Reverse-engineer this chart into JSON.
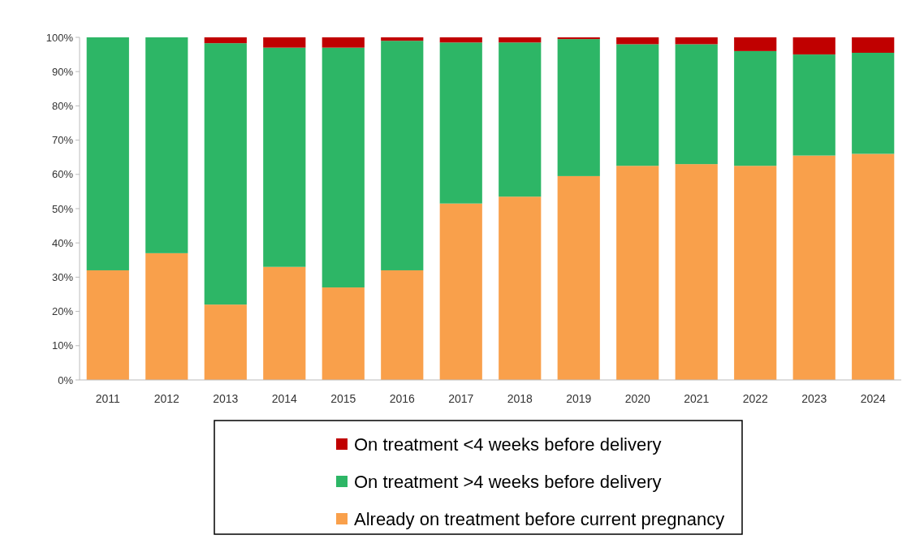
{
  "chart_data": {
    "type": "bar",
    "stacked": true,
    "legend": "bottom",
    "categories": [
      "2011",
      "2012",
      "2013",
      "2014",
      "2015",
      "2016",
      "2017",
      "2018",
      "2019",
      "2020",
      "2021",
      "2022",
      "2023",
      "2024"
    ],
    "ylim": [
      0,
      100
    ],
    "yticks": [
      {
        "value": 0,
        "label": "0%"
      },
      {
        "value": 10,
        "label": "10%"
      },
      {
        "value": 20,
        "label": "20%"
      },
      {
        "value": 30,
        "label": "30%"
      },
      {
        "value": 40,
        "label": "40%"
      },
      {
        "value": 50,
        "label": "50%"
      },
      {
        "value": 60,
        "label": "60%"
      },
      {
        "value": 70,
        "label": "70%"
      },
      {
        "value": 80,
        "label": "80%"
      },
      {
        "value": 90,
        "label": "90%"
      },
      {
        "value": 100,
        "label": "100%"
      }
    ],
    "series": [
      {
        "name": "Already on treatment before current pregnancy",
        "color": "#f9a04b",
        "values": [
          32,
          37,
          22,
          33,
          27,
          32,
          51.5,
          53.5,
          59.5,
          62.5,
          63,
          62.5,
          65.5,
          66
        ]
      },
      {
        "name": "On treatment >4 weeks before delivery",
        "color": "#2db666",
        "values": [
          68,
          63,
          76.3,
          64,
          70,
          67,
          47,
          45,
          40,
          35.5,
          35,
          33.5,
          29.5,
          29.5
        ]
      },
      {
        "name": "On treatment <4 weeks before delivery",
        "color": "#c00000",
        "values": [
          0,
          0,
          1.7,
          3,
          3,
          1,
          1.5,
          1.5,
          0.5,
          2,
          2,
          4,
          5,
          4.5
        ]
      }
    ]
  }
}
